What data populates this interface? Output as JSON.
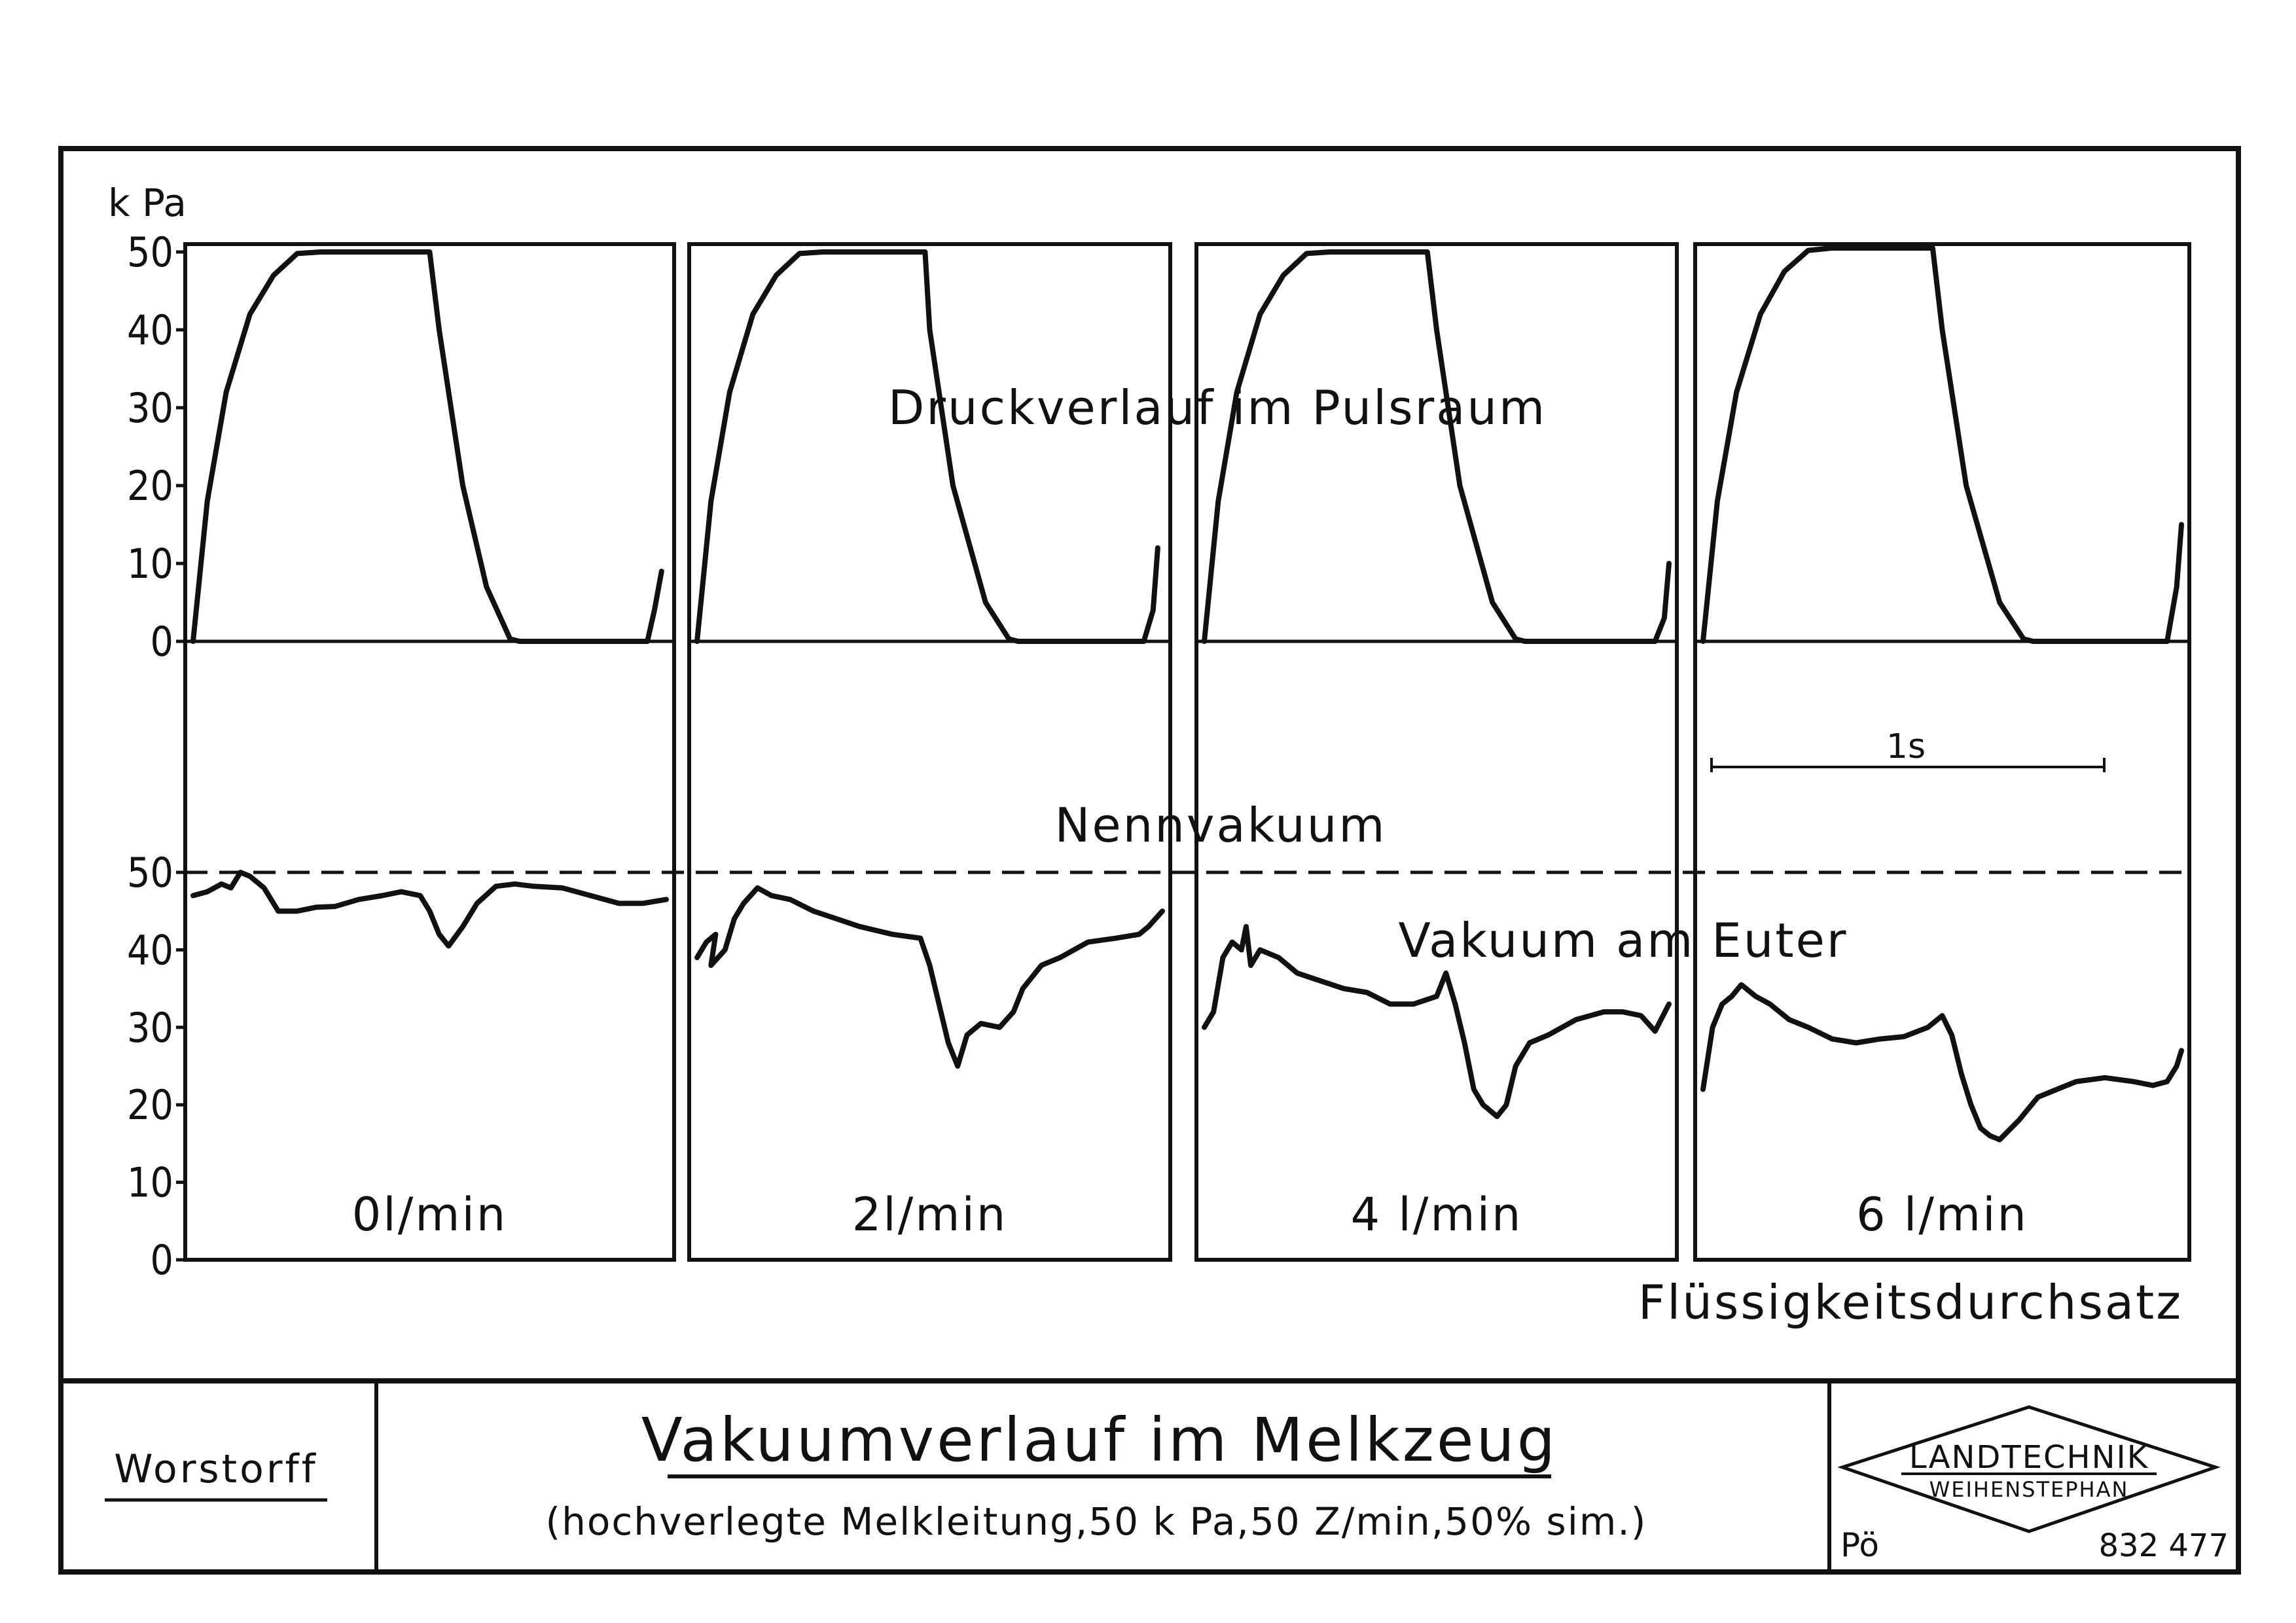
{
  "chart_data": {
    "type": "line",
    "unit": "k Pa",
    "time_scale_label": "1s",
    "yticks": [
      0,
      10,
      20,
      30,
      40,
      50
    ],
    "upper": {
      "label": "Druckverlauf im Pulsraum",
      "ylim": [
        0,
        50
      ]
    },
    "lower": {
      "label": "Vakuum am Euter",
      "nominal_label": "Nennvakuum",
      "nominal_value": 50,
      "ylim": [
        0,
        50
      ]
    },
    "x_axis_label": "Flüssigkeitsdurchsatz",
    "panels": [
      {
        "flow_label": "0l/min",
        "pulse": [
          [
            0,
            0
          ],
          [
            0.03,
            18
          ],
          [
            0.07,
            32
          ],
          [
            0.12,
            42
          ],
          [
            0.17,
            47
          ],
          [
            0.22,
            49.8
          ],
          [
            0.27,
            50
          ],
          [
            0.5,
            50
          ],
          [
            0.52,
            40
          ],
          [
            0.57,
            20
          ],
          [
            0.62,
            7
          ],
          [
            0.67,
            0.3
          ],
          [
            0.69,
            0
          ],
          [
            0.96,
            0
          ],
          [
            0.975,
            4
          ],
          [
            0.99,
            9
          ]
        ],
        "vacuum": [
          [
            0,
            47
          ],
          [
            0.03,
            47.5
          ],
          [
            0.06,
            48.5
          ],
          [
            0.08,
            48
          ],
          [
            0.1,
            50
          ],
          [
            0.12,
            49.5
          ],
          [
            0.15,
            48
          ],
          [
            0.18,
            45
          ],
          [
            0.22,
            45
          ],
          [
            0.26,
            45.5
          ],
          [
            0.3,
            45.6
          ],
          [
            0.35,
            46.5
          ],
          [
            0.4,
            47
          ],
          [
            0.44,
            47.5
          ],
          [
            0.48,
            47
          ],
          [
            0.5,
            45
          ],
          [
            0.52,
            42
          ],
          [
            0.54,
            40.5
          ],
          [
            0.57,
            43
          ],
          [
            0.6,
            46
          ],
          [
            0.64,
            48.2
          ],
          [
            0.68,
            48.5
          ],
          [
            0.72,
            48.2
          ],
          [
            0.78,
            48
          ],
          [
            0.84,
            47
          ],
          [
            0.9,
            46
          ],
          [
            0.95,
            46
          ],
          [
            1,
            46.5
          ]
        ]
      },
      {
        "flow_label": "2l/min",
        "pulse": [
          [
            0,
            0
          ],
          [
            0.03,
            18
          ],
          [
            0.07,
            32
          ],
          [
            0.12,
            42
          ],
          [
            0.17,
            47
          ],
          [
            0.22,
            49.8
          ],
          [
            0.27,
            50
          ],
          [
            0.49,
            50
          ],
          [
            0.5,
            40
          ],
          [
            0.55,
            20
          ],
          [
            0.62,
            5
          ],
          [
            0.67,
            0.3
          ],
          [
            0.69,
            0
          ],
          [
            0.96,
            0
          ],
          [
            0.98,
            4
          ],
          [
            0.99,
            12
          ]
        ],
        "vacuum": [
          [
            0,
            39
          ],
          [
            0.02,
            41
          ],
          [
            0.04,
            42
          ],
          [
            0.03,
            38
          ],
          [
            0.06,
            40
          ],
          [
            0.08,
            44
          ],
          [
            0.1,
            46
          ],
          [
            0.13,
            48
          ],
          [
            0.16,
            47
          ],
          [
            0.2,
            46.5
          ],
          [
            0.25,
            45
          ],
          [
            0.3,
            44
          ],
          [
            0.35,
            43
          ],
          [
            0.42,
            42
          ],
          [
            0.48,
            41.5
          ],
          [
            0.5,
            38
          ],
          [
            0.52,
            33
          ],
          [
            0.54,
            28
          ],
          [
            0.56,
            25
          ],
          [
            0.58,
            29
          ],
          [
            0.61,
            30.5
          ],
          [
            0.65,
            30
          ],
          [
            0.68,
            32
          ],
          [
            0.7,
            35
          ],
          [
            0.74,
            38
          ],
          [
            0.78,
            39
          ],
          [
            0.84,
            41
          ],
          [
            0.9,
            41.5
          ],
          [
            0.95,
            42
          ],
          [
            0.97,
            43
          ],
          [
            1,
            45
          ]
        ]
      },
      {
        "flow_label": "4 l/min",
        "pulse": [
          [
            0,
            0
          ],
          [
            0.03,
            18
          ],
          [
            0.07,
            32
          ],
          [
            0.12,
            42
          ],
          [
            0.17,
            47
          ],
          [
            0.22,
            49.8
          ],
          [
            0.27,
            50
          ],
          [
            0.48,
            50
          ],
          [
            0.5,
            40
          ],
          [
            0.55,
            20
          ],
          [
            0.62,
            5
          ],
          [
            0.67,
            0.3
          ],
          [
            0.69,
            0
          ],
          [
            0.97,
            0
          ],
          [
            0.99,
            3
          ],
          [
            1,
            10
          ]
        ],
        "vacuum": [
          [
            0,
            30
          ],
          [
            0.02,
            32
          ],
          [
            0.04,
            39
          ],
          [
            0.06,
            41
          ],
          [
            0.08,
            40
          ],
          [
            0.09,
            43
          ],
          [
            0.1,
            38
          ],
          [
            0.12,
            40
          ],
          [
            0.16,
            39
          ],
          [
            0.2,
            37
          ],
          [
            0.25,
            36
          ],
          [
            0.3,
            35
          ],
          [
            0.35,
            34.5
          ],
          [
            0.4,
            33
          ],
          [
            0.45,
            33
          ],
          [
            0.5,
            34
          ],
          [
            0.52,
            37
          ],
          [
            0.54,
            33
          ],
          [
            0.56,
            28
          ],
          [
            0.58,
            22
          ],
          [
            0.6,
            20
          ],
          [
            0.63,
            18.5
          ],
          [
            0.65,
            20
          ],
          [
            0.67,
            25
          ],
          [
            0.7,
            28
          ],
          [
            0.74,
            29
          ],
          [
            0.8,
            31
          ],
          [
            0.86,
            32
          ],
          [
            0.9,
            32
          ],
          [
            0.94,
            31.5
          ],
          [
            0.97,
            29.5
          ],
          [
            1,
            33
          ]
        ]
      },
      {
        "flow_label": "6 l/min",
        "pulse": [
          [
            0,
            0
          ],
          [
            0.03,
            18
          ],
          [
            0.07,
            32
          ],
          [
            0.12,
            42
          ],
          [
            0.17,
            47.5
          ],
          [
            0.22,
            50.2
          ],
          [
            0.27,
            50.5
          ],
          [
            0.48,
            50.5
          ],
          [
            0.5,
            40
          ],
          [
            0.55,
            20
          ],
          [
            0.62,
            5
          ],
          [
            0.67,
            0.3
          ],
          [
            0.69,
            0
          ],
          [
            0.97,
            0
          ],
          [
            0.99,
            7
          ],
          [
            1,
            15
          ]
        ],
        "vacuum": [
          [
            0,
            22
          ],
          [
            0.02,
            30
          ],
          [
            0.04,
            33
          ],
          [
            0.06,
            34
          ],
          [
            0.08,
            35.5
          ],
          [
            0.11,
            34
          ],
          [
            0.14,
            33
          ],
          [
            0.18,
            31
          ],
          [
            0.22,
            30
          ],
          [
            0.27,
            28.5
          ],
          [
            0.32,
            28
          ],
          [
            0.37,
            28.5
          ],
          [
            0.42,
            28.8
          ],
          [
            0.47,
            30
          ],
          [
            0.5,
            31.5
          ],
          [
            0.52,
            29
          ],
          [
            0.54,
            24
          ],
          [
            0.56,
            20
          ],
          [
            0.58,
            17
          ],
          [
            0.6,
            16
          ],
          [
            0.62,
            15.5
          ],
          [
            0.66,
            18
          ],
          [
            0.7,
            21
          ],
          [
            0.74,
            22
          ],
          [
            0.78,
            23
          ],
          [
            0.84,
            23.5
          ],
          [
            0.9,
            23
          ],
          [
            0.94,
            22.5
          ],
          [
            0.97,
            23
          ],
          [
            0.99,
            25
          ],
          [
            1,
            27
          ]
        ]
      }
    ]
  },
  "footer": {
    "left_text": "Worstorff",
    "title": "Vakuumverlauf im Melkzeug",
    "subtitle": "(hochverlegte Melkleitung,50 k Pa,50 Z/min,50% sim.)",
    "logo_line1": "LANDTECHNIK",
    "logo_line2": "WEIHENSTEPHAN",
    "initials": "Pö",
    "doc_number": "832 477"
  }
}
